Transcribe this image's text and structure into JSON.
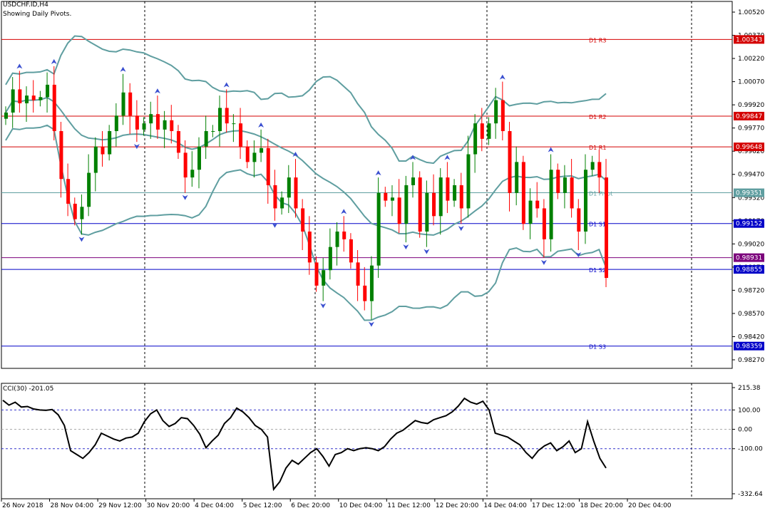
{
  "header": {
    "symbol": "USDCHF.ID,H4",
    "subtitle": "Showing Daily Pivots."
  },
  "indicator": {
    "label": "CCI(30) -201.05"
  },
  "colors": {
    "bull": "#008000",
    "bear": "#ff0000",
    "bands": "#5f9ea0",
    "cci": "#000000",
    "resistance": "#d40000",
    "support": "#0000c8",
    "pivot": "#5f9ea0",
    "bid": "#7b007b"
  },
  "chart_data": [
    {
      "type": "candlestick",
      "title": "USDCHF.ID,H4",
      "yticks": [
        "1.00520",
        "1.00370",
        "1.00220",
        "1.00070",
        "0.99920",
        "0.99770",
        "0.99620",
        "0.99470",
        "0.99320",
        "0.99170",
        "0.99020",
        "0.98870",
        "0.98720",
        "0.98570",
        "0.98420",
        "0.98270"
      ],
      "xticks": [
        "26 Nov 2018",
        "28 Nov 04:00",
        "29 Nov 12:00",
        "30 Nov 20:00",
        "4 Dec 04:00",
        "5 Dec 12:00",
        "6 Dec 20:00",
        "10 Dec 04:00",
        "11 Dec 12:00",
        "12 Dec 20:00",
        "14 Dec 04:00",
        "17 Dec 12:00",
        "18 Dec 20:00",
        "20 Dec 04:00"
      ],
      "pivot_levels": [
        {
          "name": "D1 R3",
          "value": 1.00343,
          "label": "1.00343",
          "kind": "resistance"
        },
        {
          "name": "D1 R2",
          "value": 0.99847,
          "label": "0.99847",
          "kind": "resistance"
        },
        {
          "name": "D1 R1",
          "value": 0.99648,
          "label": "0.99648",
          "kind": "resistance"
        },
        {
          "name": "D1 Pivot",
          "value": 0.99351,
          "label": "0.99351",
          "kind": "pivot"
        },
        {
          "name": "D1 S1",
          "value": 0.99152,
          "label": "0.99152",
          "kind": "support"
        },
        {
          "name": "D1 S2",
          "value": 0.98855,
          "label": "0.98855",
          "kind": "support"
        },
        {
          "name": "D1 S3",
          "value": 0.98359,
          "label": "0.98359",
          "kind": "support"
        }
      ],
      "bid": {
        "value": 0.98931,
        "label": "0.98931"
      },
      "ohlc_close": [
        0.9987,
        1.0002,
        0.9993,
        0.9998,
        0.9995,
        0.9997,
        1.0005,
        0.9975,
        0.9944,
        0.9928,
        0.9918,
        0.9926,
        0.9948,
        0.9965,
        0.996,
        0.9975,
        0.9985,
        1.0,
        0.9985,
        0.9976,
        0.998,
        0.9986,
        0.9976,
        0.9982,
        0.9975,
        0.9961,
        0.9945,
        0.995,
        0.9965,
        0.9975,
        0.9975,
        0.999,
        0.998,
        0.998,
        0.9965,
        0.9955,
        0.9961,
        0.9964,
        0.994,
        0.9925,
        0.9932,
        0.9945,
        0.9925,
        0.991,
        0.989,
        0.9875,
        0.9885,
        0.99,
        0.991,
        0.9905,
        0.989,
        0.9875,
        0.9865,
        0.9888,
        0.9935,
        0.993,
        0.9932,
        0.9915,
        0.994,
        0.9945,
        0.991,
        0.9935,
        0.992,
        0.9945,
        0.993,
        0.994,
        0.9925,
        0.996,
        0.998,
        0.997,
        0.998,
        0.9995,
        0.9975,
        0.9935,
        0.9955,
        0.9915,
        0.993,
        0.9925,
        0.9905,
        0.995,
        0.9935,
        0.9945,
        0.9925,
        0.991,
        0.995,
        0.9955,
        0.9945,
        0.988
      ],
      "bollinger": {
        "period": 20
      },
      "series": [
        {
          "name": "D1 R3"
        },
        {
          "name": "D1 R2"
        },
        {
          "name": "D1 R1"
        },
        {
          "name": "D1 Pivot"
        },
        {
          "name": "D1 S1"
        },
        {
          "name": "D1 S2"
        },
        {
          "name": "D1 S3"
        }
      ]
    },
    {
      "type": "line",
      "title": "CCI(30) -201.05",
      "yticks": [
        "215.38",
        "100.00",
        "0.00",
        "-100.00",
        "-332.64"
      ],
      "ylim": [
        -332.64,
        215.38
      ],
      "levels": [
        100,
        0,
        -100
      ],
      "values": [
        150,
        125,
        140,
        115,
        118,
        105,
        100,
        98,
        102,
        75,
        20,
        -110,
        -130,
        -150,
        -120,
        -80,
        -20,
        -35,
        -50,
        -60,
        -45,
        -40,
        -20,
        40,
        80,
        100,
        45,
        15,
        30,
        60,
        55,
        20,
        -25,
        -95,
        -60,
        -30,
        30,
        60,
        110,
        90,
        60,
        20,
        0,
        -40,
        -310,
        -270,
        -200,
        -160,
        -180,
        -150,
        -120,
        -100,
        -140,
        -190,
        -130,
        -120,
        -100,
        -110,
        -100,
        -95,
        -100,
        -110,
        -90,
        -50,
        -20,
        -5,
        20,
        45,
        35,
        30,
        50,
        60,
        70,
        90,
        120,
        160,
        140,
        130,
        145,
        100,
        -20,
        -30,
        -40,
        -60,
        -80,
        -120,
        -150,
        -110,
        -85,
        -70,
        -110,
        -90,
        -60,
        -120,
        -100,
        40,
        -60,
        -150,
        -200
      ],
      "current": -201.05
    }
  ]
}
